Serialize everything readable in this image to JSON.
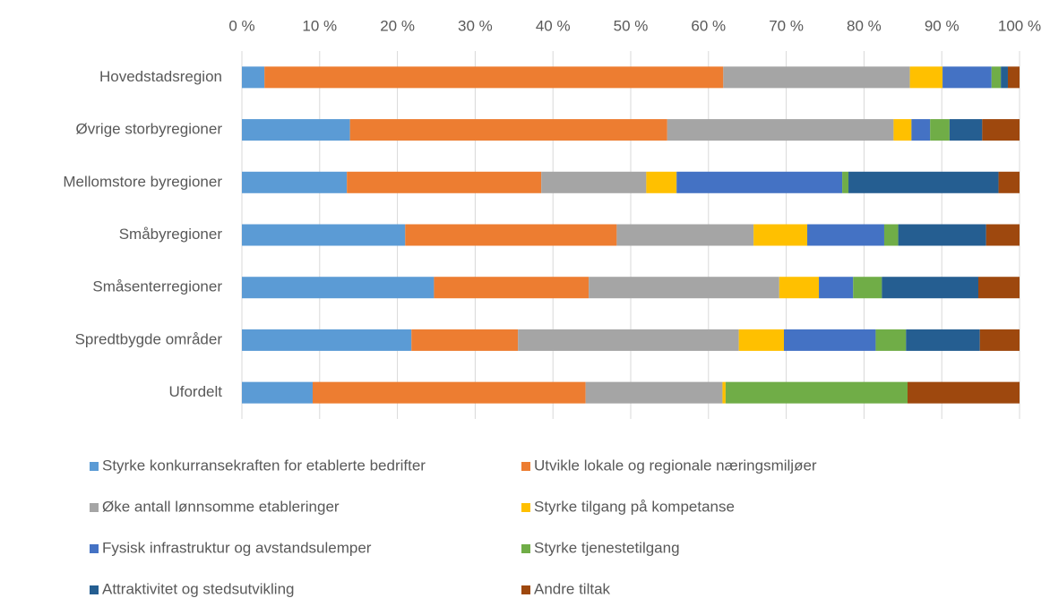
{
  "chart_data": {
    "type": "stacked_bar_horizontal",
    "categories": [
      "Hovedstadsregion",
      "Øvrige storbyregioner",
      "Mellomstore byregioner",
      "Småbyregioner",
      "Småsenterregioner",
      "Spredtbygde områder",
      "Ufordelt"
    ],
    "series": [
      {
        "name": "Styrke konkurransekraften for etablerte bedrifter",
        "color": "#5b9bd5",
        "values": [
          2.9,
          13.9,
          13.5,
          21.0,
          24.7,
          21.8,
          9.1
        ]
      },
      {
        "name": "Utvikle lokale og regionale næringsmiljøer",
        "color": "#ed7d31",
        "values": [
          59.0,
          40.8,
          25.0,
          27.2,
          19.9,
          13.7,
          35.1
        ]
      },
      {
        "name": "Øke antall lønnsomme etableringer",
        "color": "#a5a5a5",
        "values": [
          24.0,
          29.1,
          13.5,
          17.6,
          24.5,
          28.4,
          17.6
        ]
      },
      {
        "name": "Styrke tilgang på kompetanse",
        "color": "#ffc000",
        "values": [
          4.2,
          2.3,
          3.9,
          6.9,
          5.1,
          5.8,
          0.4
        ]
      },
      {
        "name": "Fysisk infrastruktur og avstandsulemper",
        "color": "#4472c4",
        "values": [
          6.3,
          2.4,
          21.3,
          9.9,
          4.4,
          11.8,
          0
        ]
      },
      {
        "name": "Styrke tjenestetilgang",
        "color": "#70ad47",
        "values": [
          1.2,
          2.5,
          0.8,
          1.8,
          3.7,
          3.9,
          23.4
        ]
      },
      {
        "name": "Attraktivitet og stedsutvikling",
        "color": "#255e91",
        "values": [
          0.9,
          4.2,
          19.3,
          11.3,
          12.4,
          9.5,
          0
        ]
      },
      {
        "name": "Andre tiltak",
        "color": "#9e480e",
        "values": [
          1.5,
          4.8,
          2.7,
          4.3,
          5.3,
          5.1,
          14.4
        ]
      }
    ],
    "xlim": [
      0,
      100
    ],
    "xticks": [
      {
        "value": 0,
        "label": "0 %"
      },
      {
        "value": 10,
        "label": "10 %"
      },
      {
        "value": 20,
        "label": "20 %"
      },
      {
        "value": 30,
        "label": "30 %"
      },
      {
        "value": 40,
        "label": "40 %"
      },
      {
        "value": 50,
        "label": "50 %"
      },
      {
        "value": 60,
        "label": "60 %"
      },
      {
        "value": 70,
        "label": "70 %"
      },
      {
        "value": 80,
        "label": "80 %"
      },
      {
        "value": 90,
        "label": "90 %"
      },
      {
        "value": 100,
        "label": "100 %"
      }
    ],
    "grid": true,
    "legend": "bottom"
  }
}
